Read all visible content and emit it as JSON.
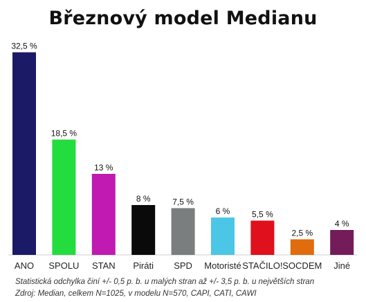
{
  "title": "Březnový model Medianu",
  "chart_data": {
    "type": "bar",
    "title": "Březnový model Medianu",
    "xlabel": "",
    "ylabel": "",
    "ylim": [
      0,
      33
    ],
    "grid": false,
    "legend": "none",
    "categories": [
      "ANO",
      "SPOLU",
      "STAN",
      "Piráti",
      "SPD",
      "Motoristé",
      "STAČILO!",
      "SOCDEM",
      "Jiné"
    ],
    "values": [
      32.5,
      18.5,
      13,
      8,
      7.5,
      6,
      5.5,
      2.5,
      4
    ],
    "value_labels": [
      "32,5 %",
      "18,5 %",
      "13 %",
      "8 %",
      "7,5 %",
      "6 %",
      "5,5 %",
      "2,5 %",
      "4 %"
    ],
    "colors": [
      "#1a1a66",
      "#22dd3d",
      "#c01ab2",
      "#0a0a0a",
      "#7a7e7f",
      "#4cc6e6",
      "#e0101c",
      "#e06c0e",
      "#741c5a"
    ]
  },
  "footnotes": {
    "line1": "Statistická odchylka činí +/- 0,5 p. b. u malých stran až +/- 3,5 p. b. u největších stran",
    "line2": "Zdroj: Median, celkem N=1025, v modelu N=570, CAPI, CATI, CAWI"
  }
}
